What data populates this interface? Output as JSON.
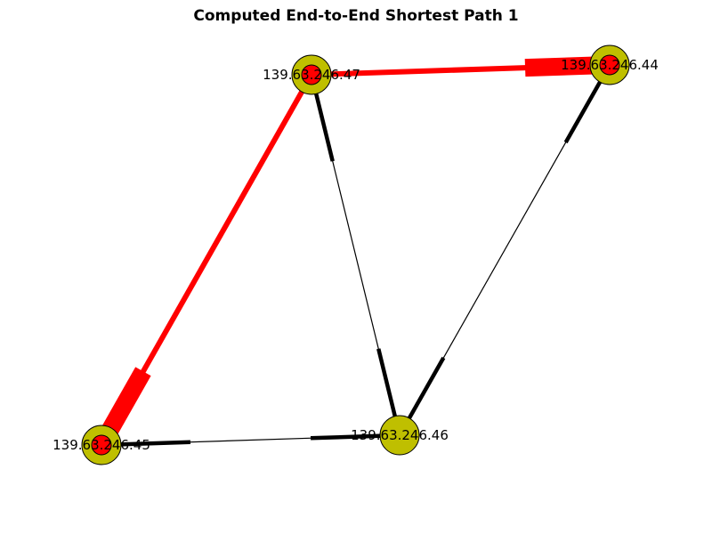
{
  "title": "Computed End-to-End Shortest Path 1",
  "colors": {
    "node_fill": "#bfbf00",
    "path_node_fill": "#ff0000",
    "path_edge": "#ff0000",
    "edge": "#000000"
  },
  "nodes": [
    {
      "id": "n47",
      "label": "139.63.246.47",
      "on_path": true
    },
    {
      "id": "n44",
      "label": "139.63.246.44",
      "on_path": true
    },
    {
      "id": "n45",
      "label": "139.63.246.45",
      "on_path": true
    },
    {
      "id": "n46",
      "label": "139.63.246.46",
      "on_path": false
    }
  ],
  "edges": [
    {
      "from": "n47",
      "to": "n46",
      "on_path": false
    },
    {
      "from": "n44",
      "to": "n46",
      "on_path": false
    },
    {
      "from": "n45",
      "to": "n46",
      "on_path": false
    },
    {
      "from": "n47",
      "to": "n44",
      "on_path": true
    },
    {
      "from": "n47",
      "to": "n45",
      "on_path": true
    }
  ]
}
